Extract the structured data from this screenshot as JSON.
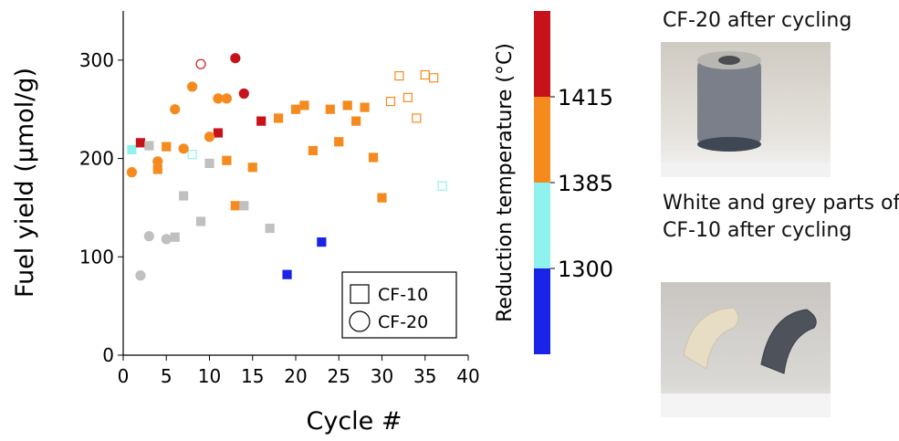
{
  "chart_data": {
    "type": "scatter",
    "xlabel": "Cycle #",
    "ylabel": "Fuel yield (μmol/g)",
    "xlim": [
      0,
      40
    ],
    "xticks": [
      0,
      5,
      10,
      15,
      20,
      25,
      30,
      35,
      40
    ],
    "ylim": [
      0,
      350
    ],
    "yticks": [
      0,
      100,
      200,
      300
    ],
    "legend": "lower right",
    "series": [
      {
        "name": "CF-10",
        "marker": "square",
        "x": [
          1,
          2,
          3,
          4,
          5,
          6,
          7,
          8,
          9,
          10,
          11,
          12,
          13,
          14,
          15,
          16,
          17,
          18,
          19,
          20,
          21,
          22,
          23,
          24,
          25,
          26,
          27,
          28,
          29,
          30,
          31,
          32,
          33,
          34,
          35,
          36,
          37
        ],
        "values": [
          209,
          216,
          213,
          189,
          212,
          120,
          162,
          204,
          136,
          195,
          226,
          198,
          152,
          152,
          191,
          238,
          129,
          241,
          82,
          250,
          254,
          208,
          115,
          250,
          217,
          254,
          238,
          252,
          201,
          160,
          258,
          284,
          262,
          241,
          285,
          282,
          172
        ],
        "colors": [
          "#8ff2ee",
          "#c8121a",
          "#c0c0c0",
          "#f58a1f",
          "#f58a1f",
          "#c0c0c0",
          "#c0c0c0",
          "#8ff2ee",
          "#c0c0c0",
          "#c0c0c0",
          "#c8121a",
          "#f58a1f",
          "#f58a1f",
          "#c0c0c0",
          "#f58a1f",
          "#c8121a",
          "#c0c0c0",
          "#f58a1f",
          "#1a24e6",
          "#f58a1f",
          "#f58a1f",
          "#f58a1f",
          "#1a24e6",
          "#f58a1f",
          "#f58a1f",
          "#f58a1f",
          "#f58a1f",
          "#f58a1f",
          "#f58a1f",
          "#f58a1f",
          "#f58a1f",
          "#f58a1f",
          "#f58a1f",
          "#f58a1f",
          "#f58a1f",
          "#f58a1f",
          "#8ff2ee"
        ],
        "filled": [
          true,
          true,
          true,
          true,
          true,
          true,
          true,
          false,
          true,
          true,
          true,
          true,
          true,
          true,
          true,
          true,
          true,
          true,
          true,
          true,
          true,
          true,
          true,
          true,
          true,
          true,
          true,
          true,
          true,
          true,
          false,
          false,
          false,
          false,
          false,
          false,
          false
        ]
      },
      {
        "name": "CF-20",
        "marker": "circle",
        "x": [
          1,
          2,
          3,
          4,
          5,
          6,
          7,
          8,
          9,
          10,
          11,
          12,
          13,
          14
        ],
        "values": [
          186,
          81,
          121,
          197,
          118,
          250,
          210,
          273,
          296,
          222,
          261,
          261,
          302,
          266
        ],
        "colors": [
          "#f58a1f",
          "#c0c0c0",
          "#c0c0c0",
          "#f58a1f",
          "#c0c0c0",
          "#f58a1f",
          "#f58a1f",
          "#f58a1f",
          "#c8121a",
          "#f58a1f",
          "#f58a1f",
          "#f58a1f",
          "#c8121a",
          "#c8121a"
        ],
        "filled": [
          true,
          true,
          true,
          true,
          true,
          true,
          true,
          true,
          false,
          true,
          true,
          true,
          true,
          true
        ]
      }
    ],
    "colorbar": {
      "label": "Reduction temperature (°C)",
      "colors": [
        "#1a24e6",
        "#8ff2ee",
        "#f58a1f",
        "#c8121a"
      ],
      "ticks": [
        1300,
        1385,
        1415
      ]
    }
  },
  "photos": [
    {
      "caption": "CF-20 after cycling"
    },
    {
      "caption": "White and grey parts of CF-10 after cycling"
    }
  ]
}
